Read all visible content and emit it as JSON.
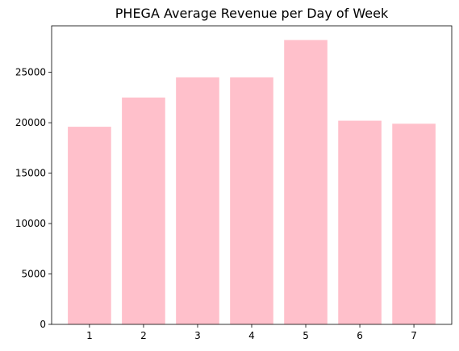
{
  "chart_data": {
    "type": "bar",
    "title": "PHEGA Average Revenue per Day of Week",
    "xlabel": "",
    "ylabel": "",
    "categories": [
      "1",
      "2",
      "3",
      "4",
      "5",
      "6",
      "7"
    ],
    "values": [
      19600,
      22500,
      24500,
      24500,
      28200,
      20200,
      19900
    ],
    "ylim": [
      0,
      29610
    ],
    "yticks": [
      0,
      5000,
      10000,
      15000,
      20000,
      25000
    ],
    "grid": false,
    "legend": "none",
    "colors": {
      "bar": "#ffc0cb",
      "axis": "#000000"
    }
  }
}
